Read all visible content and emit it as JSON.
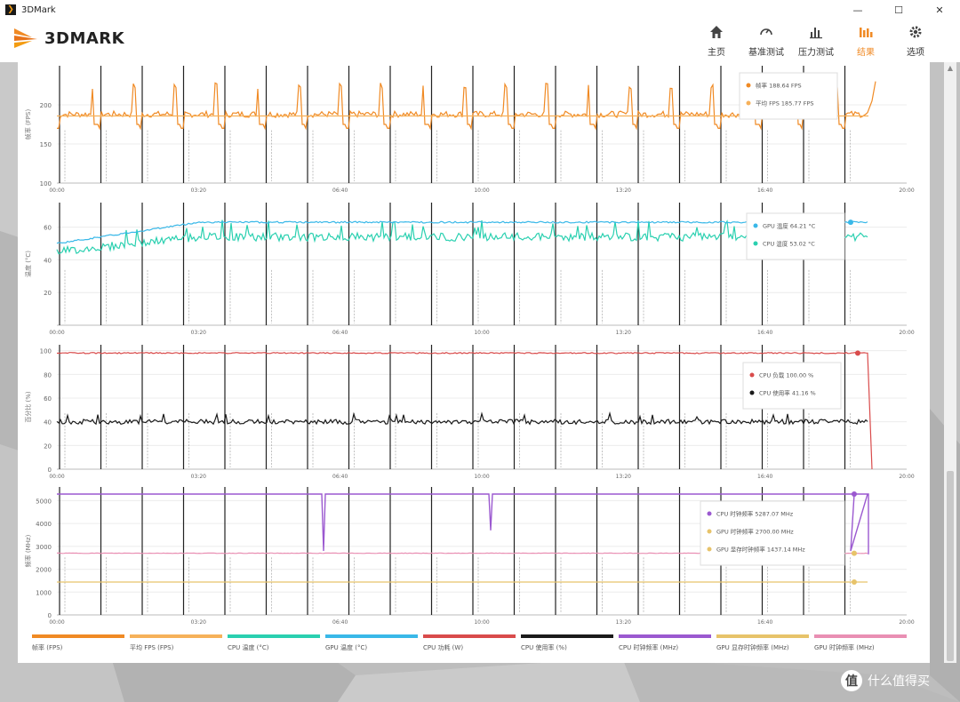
{
  "window": {
    "title": "3DMark",
    "minimize": "—",
    "maximize": "☐",
    "close": "✕"
  },
  "logo": {
    "text": "3DMARK"
  },
  "nav": [
    {
      "label": "主页",
      "icon": "home-icon"
    },
    {
      "label": "基准测试",
      "icon": "gauge-icon"
    },
    {
      "label": "压力测试",
      "icon": "stress-chart-icon"
    },
    {
      "label": "结果",
      "icon": "bar-chart-icon",
      "active": true
    },
    {
      "label": "选项",
      "icon": "gear-icon"
    }
  ],
  "colors": {
    "accent": "#f08a24",
    "fps": "#f08a24",
    "avg_fps": "#f6b15a",
    "cpu_temp": "#2ad0b0",
    "gpu_temp": "#39b8e8",
    "cpu_power": "#d94b4b",
    "gpu_load": "#1a1a1a",
    "cpu_clock": "#9b59d0",
    "gpu_mem_clock": "#e7c36a",
    "gpu_core_clock": "#e98fb3"
  },
  "chart_data": [
    {
      "type": "line",
      "ylabel": "帧率 (FPS)",
      "ylim": [
        100,
        250
      ],
      "yticks": [
        "100",
        "150",
        "200"
      ],
      "xticks": [
        "00:00",
        "03:20",
        "06:40",
        "10:00",
        "13:20",
        "16:40",
        "20:00"
      ],
      "series": [
        {
          "name": "帧率",
          "readout": "帧率 188.64 FPS",
          "baseline": 180,
          "peak": 220
        },
        {
          "name": "平均 FPS",
          "readout": "平均 FPS 185.77 FPS",
          "value": 185.77
        }
      ]
    },
    {
      "type": "line",
      "ylabel": "温度 (°C)",
      "ylim": [
        0,
        75
      ],
      "yticks": [
        "20",
        "40",
        "60"
      ],
      "xticks": [
        "00:00",
        "03:20",
        "06:40",
        "10:00",
        "13:20",
        "16:40",
        "20:00"
      ],
      "series": [
        {
          "name": "GPU 温度",
          "readout": "GPU 温度 64.21 °C",
          "start": 50,
          "plateau": 63
        },
        {
          "name": "CPU 温度",
          "readout": "CPU 温度 53.02 °C",
          "start": 45,
          "plateau": 54
        }
      ]
    },
    {
      "type": "line",
      "ylabel": "百分比 (%)",
      "ylim": [
        0,
        105
      ],
      "yticks": [
        "0",
        "20",
        "40",
        "60",
        "80",
        "100"
      ],
      "xticks": [
        "00:00",
        "03:20",
        "06:40",
        "10:00",
        "13:20",
        "16:40",
        "20:00"
      ],
      "series": [
        {
          "name": "CPU 负载",
          "readout": "CPU 负载 100.00 %",
          "value": 98
        },
        {
          "name": "CPU 使用率",
          "readout": "CPU 使用率 41.16 %",
          "value": 40
        }
      ]
    },
    {
      "type": "line",
      "ylabel": "频率 (MHz)",
      "ylim": [
        0,
        5600
      ],
      "yticks": [
        "0",
        "1000",
        "2000",
        "3000",
        "4000",
        "5000"
      ],
      "xticks": [
        "00:00",
        "03:20",
        "06:40",
        "10:00",
        "13:20",
        "16:40",
        "20:00"
      ],
      "series": [
        {
          "name": "CPU 时钟频率",
          "readout": "CPU 时钟频率 5287.07 MHz",
          "value": 5290
        },
        {
          "name": "GPU 时钟频率",
          "readout": "GPU 时钟频率 2700.00 MHz",
          "value": 2700
        },
        {
          "name": "GPU 显存时钟频率",
          "readout": "GPU 显存时钟频率 1437.14 MHz",
          "value": 1440
        }
      ]
    }
  ],
  "legend": [
    {
      "label": "帧率 (FPS)",
      "color": "#f08a24"
    },
    {
      "label": "平均 FPS (FPS)",
      "color": "#f6b15a"
    },
    {
      "label": "CPU 温度 (°C)",
      "color": "#2ad0b0"
    },
    {
      "label": "GPU 温度 (°C)",
      "color": "#39b8e8"
    },
    {
      "label": "CPU 功耗 (W)",
      "color": "#d94b4b"
    },
    {
      "label": "CPU 使用率 (%)",
      "color": "#1a1a1a"
    },
    {
      "label": "CPU 时钟频率 (MHz)",
      "color": "#9b59d0"
    },
    {
      "label": "GPU 显存时钟频率 (MHz)",
      "color": "#e7c36a"
    },
    {
      "label": "GPU 时钟频率 (MHz)",
      "color": "#e98fb3"
    }
  ],
  "watermark": {
    "badge": "值",
    "text": "什么值得买"
  }
}
